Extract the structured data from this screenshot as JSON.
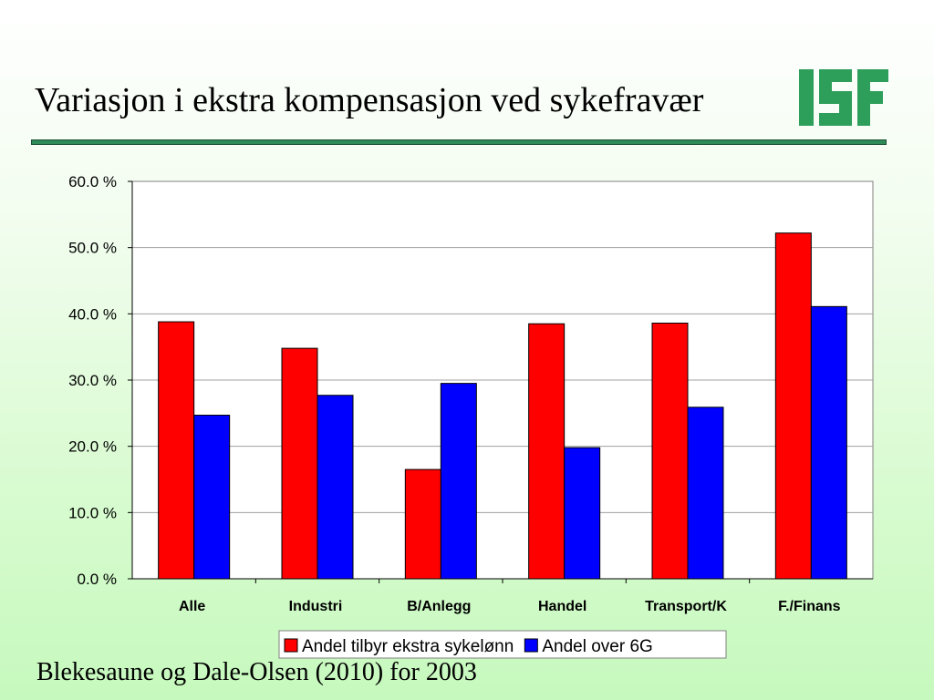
{
  "slide": {
    "title": "Variasjon i ekstra kompensasjon ved sykefravær",
    "source": "Blekesaune og Dale-Olsen (2010) for 2003",
    "logo_alt": "ISF",
    "rule_color": "#2e8b57"
  },
  "chart_data": {
    "type": "bar",
    "categories": [
      "Alle",
      "Industri",
      "B/Anlegg",
      "Handel",
      "Transport/K",
      "F./Finans"
    ],
    "series": [
      {
        "name": "Andel tilbyr ekstra sykelønn",
        "color": "#ff0000",
        "values": [
          38.8,
          34.8,
          16.5,
          38.5,
          38.6,
          52.2
        ]
      },
      {
        "name": "Andel over 6G",
        "color": "#0000ff",
        "values": [
          24.7,
          27.7,
          29.5,
          19.8,
          25.9,
          41.1
        ]
      }
    ],
    "ylim": [
      0,
      60
    ],
    "yticks": [
      "0.0 %",
      "10.0 %",
      "20.0 %",
      "30.0 %",
      "40.0 %",
      "50.0 %",
      "60.0 %"
    ],
    "ytick_values": [
      0,
      10,
      20,
      30,
      40,
      50,
      60
    ],
    "grid": true,
    "legend_position": "bottom",
    "xlabel": "",
    "ylabel": ""
  }
}
